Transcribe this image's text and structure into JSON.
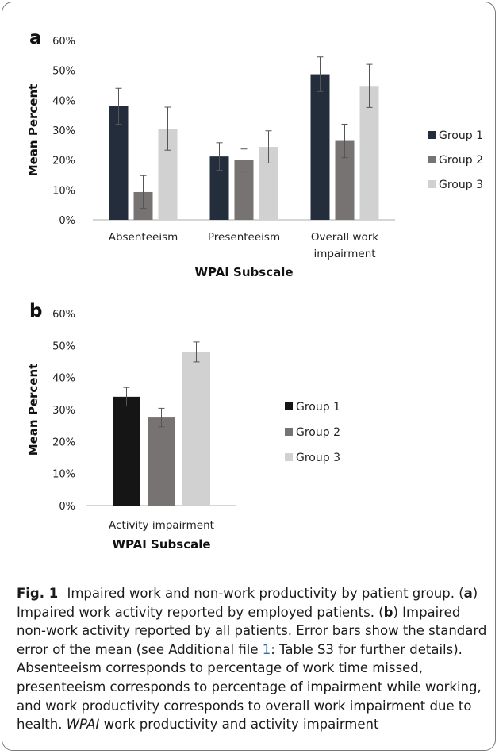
{
  "chart_data": [
    {
      "panel": "a",
      "type": "bar",
      "categories": [
        "Absenteeism",
        "Presenteeism",
        "Overall work impairment"
      ],
      "series": [
        {
          "name": "Group 1",
          "color": "#232d3b",
          "values": [
            38,
            21.2,
            48.7
          ],
          "errors": [
            6,
            4.6,
            5.8
          ]
        },
        {
          "name": "Group 2",
          "color": "#767372",
          "values": [
            9.3,
            20,
            26.4
          ],
          "errors": [
            5.5,
            3.7,
            5.6
          ]
        },
        {
          "name": "Group 3",
          "color": "#d1d1d2",
          "values": [
            30.5,
            24.4,
            44.8
          ],
          "errors": [
            7.2,
            5.4,
            7.2
          ]
        }
      ],
      "ylabel": "Mean Percent",
      "xlabel": "WPAI Subscale",
      "ylim": [
        0,
        60
      ],
      "yticks": [
        "0%",
        "10%",
        "20%",
        "30%",
        "40%",
        "50%",
        "60%"
      ],
      "legend": "right",
      "grid": false
    },
    {
      "panel": "b",
      "type": "bar",
      "categories": [
        "Activity impairment"
      ],
      "series": [
        {
          "name": "Group 1",
          "color": "#151515",
          "values": [
            34
          ],
          "errors": [
            2.9
          ]
        },
        {
          "name": "Group 2",
          "color": "#767372",
          "values": [
            27.5
          ],
          "errors": [
            2.9
          ]
        },
        {
          "name": "Group 3",
          "color": "#d1d1d2",
          "values": [
            48
          ],
          "errors": [
            3.1
          ]
        }
      ],
      "ylabel": "Mean Percent",
      "xlabel": "WPAI Subscale",
      "ylim": [
        0,
        60
      ],
      "yticks": [
        "0%",
        "10%",
        "20%",
        "30%",
        "40%",
        "50%",
        "60%"
      ],
      "legend": "right",
      "grid": false
    }
  ],
  "caption": {
    "fig_label": "Fig. 1",
    "title": "Impaired work and non-work productivity by patient group.",
    "open_a": "(",
    "a": "a",
    "close_a": ") Impaired work activity reported by employed patients. (",
    "b": "b",
    "close_b": ") Impaired non-work activity reported by all patients. Error bars show the standard error of the mean (see Additional file ",
    "file_ref": "1",
    "after_ref": ": Table S3 for further details). Absenteeism corresponds to percentage of work time missed, presenteeism corresponds to percentage of impairment while working, and work productivity corresponds to overall work impairment due to health. ",
    "wpai": "WPAI",
    "wpai_def": " work productivity and activity impairment"
  }
}
